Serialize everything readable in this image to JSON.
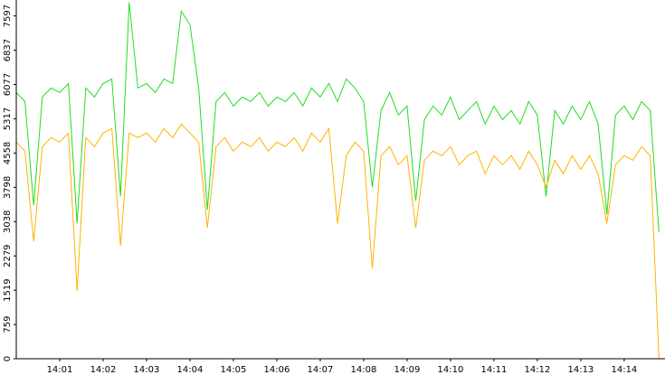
{
  "chart_data": {
    "type": "line",
    "x": [
      0,
      0.2,
      0.4,
      0.6,
      0.8,
      1,
      1.2,
      1.4,
      1.6,
      1.8,
      2,
      2.2,
      2.4,
      2.6,
      2.8,
      3,
      3.2,
      3.4,
      3.6,
      3.8,
      4,
      4.2,
      4.4,
      4.6,
      4.8,
      5,
      5.2,
      5.4,
      5.6,
      5.8,
      6,
      6.2,
      6.4,
      6.6,
      6.8,
      7,
      7.2,
      7.4,
      7.6,
      7.8,
      8,
      8.2,
      8.4,
      8.6,
      8.8,
      9,
      9.2,
      9.4,
      9.6,
      9.8,
      10,
      10.2,
      10.4,
      10.6,
      10.8,
      11,
      11.2,
      11.4,
      11.6,
      11.8,
      12,
      12.2,
      12.4,
      12.6,
      12.8,
      13,
      13.2,
      13.4,
      13.6,
      13.8,
      14,
      14.2,
      14.4,
      14.6,
      14.8
    ],
    "series": [
      {
        "color": "#22dd22",
        "values": [
          5900,
          5700,
          3400,
          5800,
          6000,
          5900,
          6100,
          3000,
          6000,
          5800,
          6100,
          6200,
          3600,
          7900,
          6000,
          6100,
          5900,
          6200,
          6100,
          7700,
          7400,
          6000,
          3300,
          5700,
          5900,
          5600,
          5800,
          5700,
          5900,
          5600,
          5800,
          5700,
          5900,
          5600,
          6000,
          5800,
          6100,
          5700,
          6200,
          6000,
          5700,
          3800,
          5500,
          5900,
          5400,
          5600,
          3500,
          5300,
          5600,
          5400,
          5800,
          5300,
          5500,
          5700,
          5200,
          5600,
          5300,
          5500,
          5200,
          5700,
          5400,
          3600,
          5500,
          5200,
          5600,
          5300,
          5700,
          5200,
          3200,
          5400,
          5600,
          5300,
          5700,
          5500,
          2800
        ]
      },
      {
        "color": "#ffb300",
        "values": [
          4800,
          4600,
          2600,
          4700,
          4900,
          4800,
          5000,
          1500,
          4900,
          4700,
          5000,
          5100,
          2500,
          5000,
          4900,
          5000,
          4800,
          5100,
          4900,
          5200,
          5000,
          4800,
          2900,
          4700,
          4900,
          4600,
          4800,
          4700,
          4900,
          4600,
          4800,
          4700,
          4900,
          4600,
          5000,
          4800,
          5100,
          3000,
          4500,
          4800,
          4600,
          2000,
          4500,
          4700,
          4300,
          4500,
          2900,
          4400,
          4600,
          4500,
          4700,
          4300,
          4500,
          4600,
          4100,
          4500,
          4300,
          4500,
          4200,
          4600,
          4300,
          3800,
          4400,
          4100,
          4500,
          4200,
          4500,
          4100,
          3000,
          4300,
          4500,
          4400,
          4700,
          4500,
          0
        ]
      }
    ],
    "xlim": [
      0,
      14.94
    ],
    "xticks": [
      {
        "value": 1,
        "label": "14:01"
      },
      {
        "value": 2,
        "label": "14:02"
      },
      {
        "value": 3,
        "label": "14:03"
      },
      {
        "value": 4,
        "label": "14:04"
      },
      {
        "value": 5,
        "label": "14:05"
      },
      {
        "value": 6,
        "label": "14:06"
      },
      {
        "value": 7,
        "label": "14:07"
      },
      {
        "value": 8,
        "label": "14:08"
      },
      {
        "value": 9,
        "label": "14:09"
      },
      {
        "value": 10,
        "label": "14:10"
      },
      {
        "value": 11,
        "label": "14:11"
      },
      {
        "value": 12,
        "label": "14:12"
      },
      {
        "value": 13,
        "label": "14:13"
      },
      {
        "value": 14,
        "label": "14:14"
      }
    ],
    "ylim": [
      0,
      7950
    ],
    "yticks": [
      0,
      759,
      1519,
      2279,
      3038,
      3798,
      4558,
      5317,
      6077,
      6837,
      7597
    ]
  }
}
